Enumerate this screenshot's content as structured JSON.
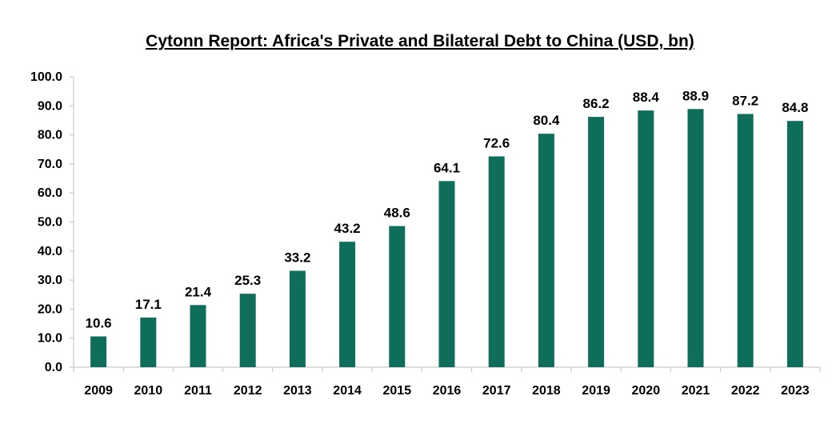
{
  "chart_data": {
    "type": "bar",
    "title": "Cytonn Report: Africa's Private and Bilateral Debt to China (USD, bn)",
    "categories": [
      "2009",
      "2010",
      "2011",
      "2012",
      "2013",
      "2014",
      "2015",
      "2016",
      "2017",
      "2018",
      "2019",
      "2020",
      "2021",
      "2022",
      "2023"
    ],
    "values": [
      10.6,
      17.1,
      21.4,
      25.3,
      33.2,
      43.2,
      48.6,
      64.1,
      72.6,
      80.4,
      86.2,
      88.4,
      88.9,
      87.2,
      84.8
    ],
    "value_labels": [
      "10.6",
      "17.1",
      "21.4",
      "25.3",
      "33.2",
      "43.2",
      "48.6",
      "64.1",
      "72.6",
      "80.4",
      "86.2",
      "88.4",
      "88.9",
      "87.2",
      "84.8"
    ],
    "ylim": [
      0,
      100
    ],
    "yticks": [
      "0.0",
      "10.0",
      "20.0",
      "30.0",
      "40.0",
      "50.0",
      "60.0",
      "70.0",
      "80.0",
      "90.0",
      "100.0"
    ],
    "xlabel": "",
    "ylabel": "",
    "grid": false,
    "legend": "none",
    "bar_color": "#0f6e5b"
  }
}
